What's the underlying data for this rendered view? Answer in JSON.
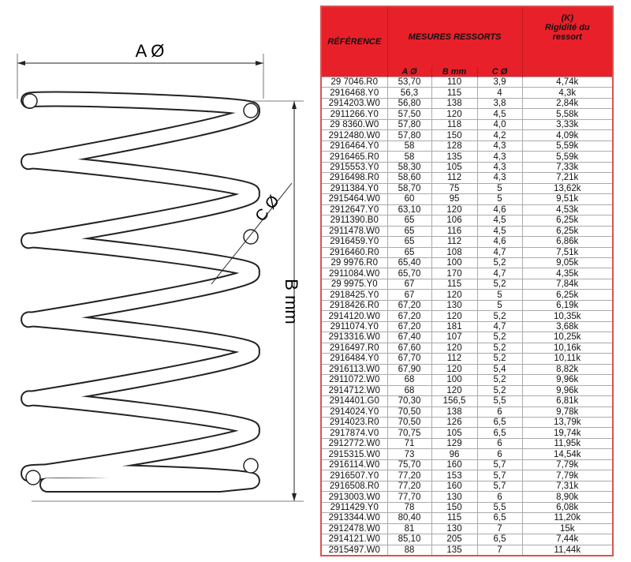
{
  "diagram": {
    "labels": {
      "a": "A Ø",
      "b": "B mm",
      "c": "C Ø"
    }
  },
  "table": {
    "headers": {
      "reference": "RÉFÉRENCE",
      "measures": "MESURES RESSORTS",
      "k_symbol": "(K)",
      "stiffness": "Rigidité du ressort",
      "a": "A Ø",
      "b": "B mm",
      "c": "C Ø"
    },
    "accent_color": "#e8202a",
    "rows": [
      [
        "29 7046.R0",
        "53,70",
        "110",
        "3,9",
        "4,74k"
      ],
      [
        "2916468.Y0",
        "56,3",
        "115",
        "4",
        "4,3k"
      ],
      [
        "2914203.W0",
        "56,80",
        "138",
        "3,8",
        "2,84k"
      ],
      [
        "2911266.Y0",
        "57,50",
        "120",
        "4,5",
        "5,58k"
      ],
      [
        "29 8360.W0",
        "57,80",
        "118",
        "4,0",
        "3,33k"
      ],
      [
        "2912480.W0",
        "57,80",
        "150",
        "4,2",
        "4,09k"
      ],
      [
        "2916464.Y0",
        "58",
        "128",
        "4,3",
        "5,59k"
      ],
      [
        "2916465.R0",
        "58",
        "135",
        "4,3",
        "5,59k"
      ],
      [
        "2915553.Y0",
        "58,30",
        "105",
        "4,3",
        "7,33k"
      ],
      [
        "2916498.R0",
        "58,60",
        "112",
        "4,3",
        "7,21k"
      ],
      [
        "2911384.Y0",
        "58,70",
        "75",
        "5",
        "13,62k"
      ],
      [
        "2915464.W0",
        "60",
        "95",
        "5",
        "9,51k"
      ],
      [
        "2912647.Y0",
        "63,10",
        "120",
        "4,6",
        "4,53k"
      ],
      [
        "2911390.B0",
        "65",
        "106",
        "4,5",
        "6,25k"
      ],
      [
        "2911478.W0",
        "65",
        "116",
        "4,5",
        "6,25k"
      ],
      [
        "2916459.Y0",
        "65",
        "112",
        "4,6",
        "6,86k"
      ],
      [
        "2916460.R0",
        "65",
        "108",
        "4,7",
        "7,51k"
      ],
      [
        "29 9976.R0",
        "65,40",
        "100",
        "5,2",
        "9,05k"
      ],
      [
        "2911084.W0",
        "65,70",
        "170",
        "4,7",
        "4,35k"
      ],
      [
        "29 9975.Y0",
        "67",
        "115",
        "5,2",
        "7,84k"
      ],
      [
        "2918425.Y0",
        "67",
        "120",
        "5",
        "6,25k"
      ],
      [
        "2918426.R0",
        "67,20",
        "130",
        "5",
        "6,19k"
      ],
      [
        "2914120.W0",
        "67,20",
        "120",
        "5,2",
        "10,35k"
      ],
      [
        "2911074.Y0",
        "67,20",
        "181",
        "4,7",
        "3,68k"
      ],
      [
        "2913316.W0",
        "67,40",
        "107",
        "5,2",
        "10,25k"
      ],
      [
        "2916497.R0",
        "67,60",
        "120",
        "5,2",
        "10,16k"
      ],
      [
        "2916484.Y0",
        "67,70",
        "112",
        "5,2",
        "10,11k"
      ],
      [
        "2916113.W0",
        "67,90",
        "120",
        "5,4",
        "8,82k"
      ],
      [
        "2911072.W0",
        "68",
        "100",
        "5,2",
        "9,96k"
      ],
      [
        "2914712.W0",
        "68",
        "120",
        "5,2",
        "9,96k"
      ],
      [
        "2914401.G0",
        "70,30",
        "156,5",
        "5,5",
        "6,81k"
      ],
      [
        "2914024.Y0",
        "70,50",
        "138",
        "6",
        "9,78k"
      ],
      [
        "2914023.R0",
        "70,50",
        "126",
        "6,5",
        "13,79k"
      ],
      [
        "2917874.V0",
        "70,75",
        "105",
        "6,5",
        "19,74k"
      ],
      [
        "2912772.W0",
        "71",
        "129",
        "6",
        "11,95k"
      ],
      [
        "2915315.W0",
        "73",
        "96",
        "6",
        "14,54k"
      ],
      [
        "2916114.W0",
        "75,70",
        "160",
        "5,7",
        "7,79k"
      ],
      [
        "2916507.Y0",
        "77,20",
        "153",
        "5,7",
        "7,79k"
      ],
      [
        "2916508.R0",
        "77,20",
        "160",
        "5,7",
        "7,31k"
      ],
      [
        "2913003.W0",
        "77,70",
        "130",
        "6",
        "8,90k"
      ],
      [
        "2911429.Y0",
        "78",
        "150",
        "5,5",
        "6,08k"
      ],
      [
        "2913344.W0",
        "80,40",
        "115",
        "6,5",
        "11,20k"
      ],
      [
        "2912478.W0",
        "81",
        "130",
        "7",
        "15k"
      ],
      [
        "2914121.W0",
        "85,10",
        "205",
        "6,5",
        "7,44k"
      ],
      [
        "2915497.W0",
        "88",
        "135",
        "7",
        "11,44k"
      ]
    ]
  }
}
